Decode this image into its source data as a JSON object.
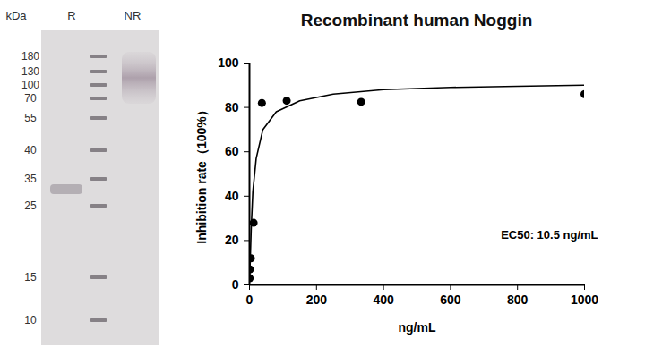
{
  "chart_data": {
    "type": "scatter",
    "title": "Recombinant human Noggin",
    "x_label": "ng/mL",
    "y_label": "Inhibition rate（100%）",
    "annotation": "EC50: 10.5 ng/mL",
    "x": [
      0.457,
      1.372,
      4.115,
      12.35,
      37.04,
      111.1,
      333.3,
      1000
    ],
    "values": [
      3,
      7,
      12,
      28,
      82,
      83,
      82.5,
      86
    ],
    "curve": {
      "x": [
        0.5,
        2,
        5,
        10,
        20,
        40,
        80,
        150,
        250,
        400,
        600,
        800,
        1000
      ],
      "values": [
        3,
        10,
        25,
        42,
        57,
        70,
        78,
        83,
        86,
        88,
        89,
        89.5,
        90
      ]
    },
    "color": "#000000",
    "marker": "circle",
    "xlim": [
      0,
      1000
    ],
    "xticks": [
      0,
      200,
      400,
      600,
      800,
      1000
    ],
    "ylim": [
      0,
      100
    ],
    "yticks": [
      0,
      20,
      40,
      60,
      80,
      100
    ],
    "grid": false
  },
  "gel": {
    "lane_labels": [
      "kDa",
      "R",
      "NR"
    ],
    "markers": [
      180,
      130,
      100,
      70,
      55,
      40,
      35,
      25,
      15,
      10
    ]
  }
}
